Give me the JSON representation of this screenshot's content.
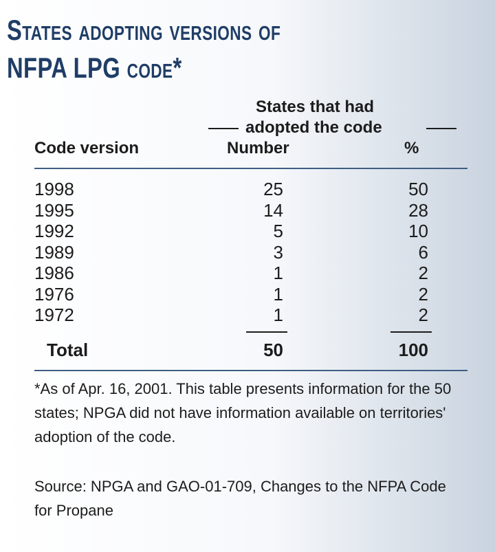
{
  "title": [
    "States adopting versions of",
    "NFPA LPG code*"
  ],
  "table": {
    "group_header": [
      "States that had",
      "adopted the code"
    ],
    "columns": [
      "Code version",
      "Number",
      "%"
    ],
    "rows": [
      [
        "1998",
        25,
        50
      ],
      [
        "1995",
        14,
        28
      ],
      [
        "1992",
        5,
        10
      ],
      [
        "1989",
        3,
        6
      ],
      [
        "1986",
        1,
        2
      ],
      [
        "1976",
        1,
        2
      ],
      [
        "1972",
        1,
        2
      ]
    ],
    "total": [
      "Total",
      50,
      100
    ]
  },
  "footnote": "*As of Apr. 16, 2001. This table presents information for the 50 states; NPGA did not have information available on territories' adoption of the code.",
  "source": "Source: NPGA and GAO-01-709, Changes to the NFPA Code for Propane"
}
